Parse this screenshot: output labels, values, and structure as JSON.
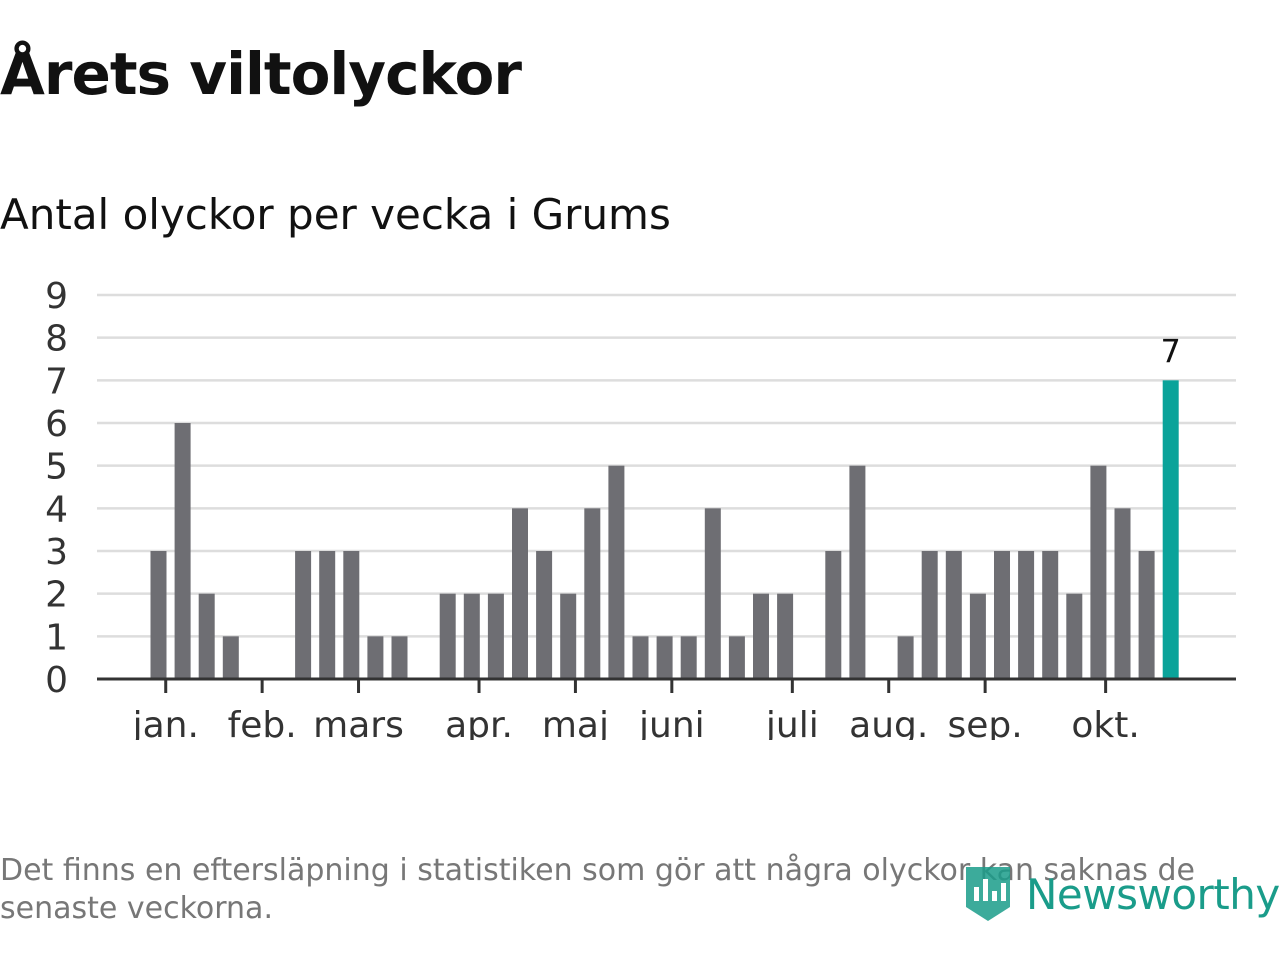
{
  "title": "Årets viltolyckor",
  "subtitle": "Antal olyckor per vecka i Grums",
  "footnote": "Det finns en eftersläpning i statistiken som gör att några olyckor kan saknas de senaste veckorna.",
  "brand": {
    "name": "Newsworthy",
    "color": "#1a9c8a"
  },
  "colors": {
    "bar": "#6e6e73",
    "highlight": "#0aa39a",
    "grid": "#dddddd",
    "axis": "#333333"
  },
  "chart_data": {
    "type": "bar",
    "title": "Antal olyckor per vecka i Grums",
    "xlabel": "",
    "ylabel": "",
    "ylim": [
      0,
      9
    ],
    "yticks": [
      0,
      1,
      2,
      3,
      4,
      5,
      6,
      7,
      8,
      9
    ],
    "grid": true,
    "weeks": [
      1,
      2,
      3,
      4,
      5,
      6,
      7,
      8,
      9,
      10,
      11,
      12,
      13,
      14,
      15,
      16,
      17,
      18,
      19,
      20,
      21,
      22,
      23,
      24,
      25,
      26,
      27,
      28,
      29,
      30,
      31,
      32,
      33,
      34,
      35,
      36,
      37,
      38,
      39,
      40,
      41,
      42,
      43
    ],
    "values": [
      3,
      6,
      2,
      1,
      0,
      0,
      3,
      3,
      3,
      1,
      1,
      0,
      2,
      2,
      2,
      4,
      3,
      2,
      4,
      5,
      1,
      1,
      1,
      4,
      1,
      2,
      2,
      0,
      3,
      5,
      0,
      1,
      3,
      3,
      2,
      3,
      3,
      3,
      2,
      5,
      4,
      3,
      7
    ],
    "highlight_index": 42,
    "highlight_label": "7",
    "month_labels": [
      {
        "label": "jan.",
        "week": 1.3
      },
      {
        "label": "feb.",
        "week": 5.3
      },
      {
        "label": "mars",
        "week": 9.3
      },
      {
        "label": "apr.",
        "week": 14.3
      },
      {
        "label": "maj",
        "week": 18.3
      },
      {
        "label": "juni",
        "week": 22.3
      },
      {
        "label": "juli",
        "week": 27.3
      },
      {
        "label": "aug.",
        "week": 31.3
      },
      {
        "label": "sep.",
        "week": 35.3
      },
      {
        "label": "okt.",
        "week": 40.3
      }
    ]
  }
}
